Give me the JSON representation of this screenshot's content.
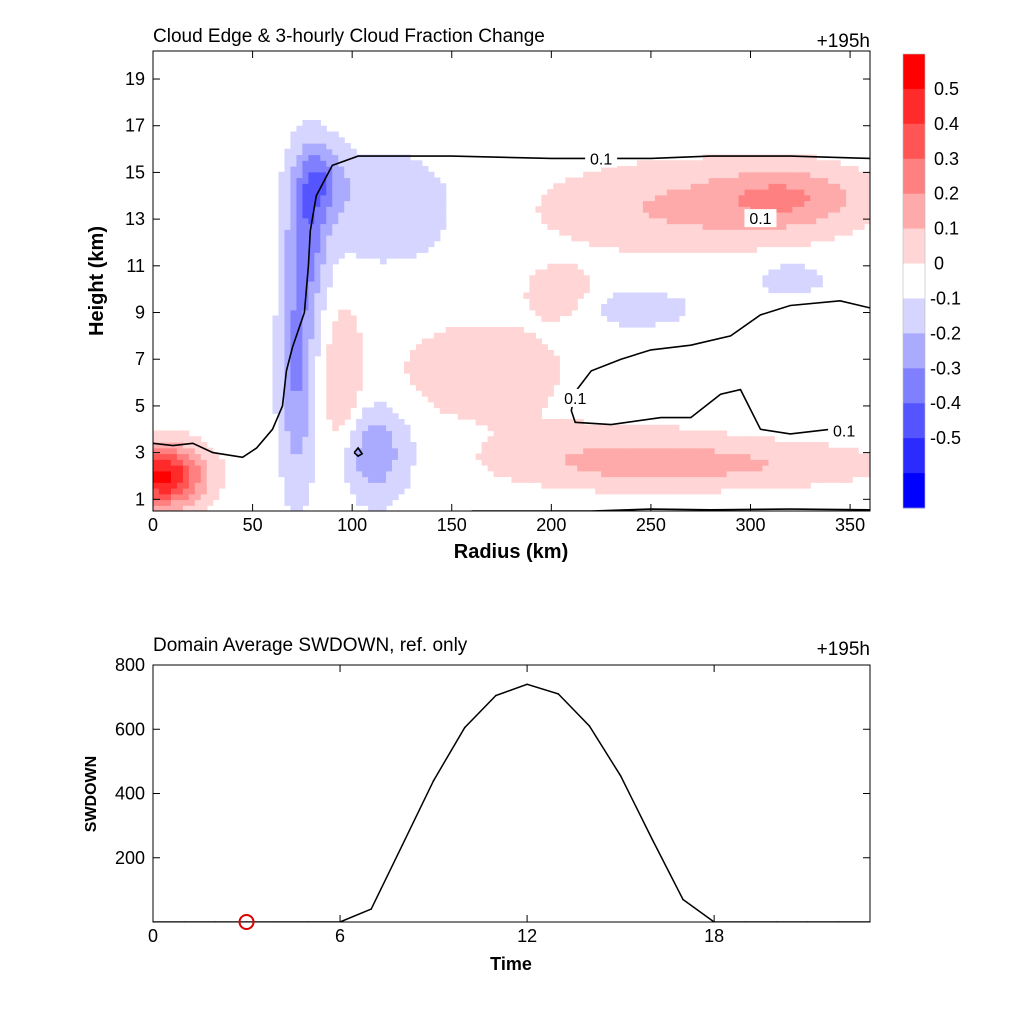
{
  "chart_data": [
    {
      "type": "heatmap",
      "title": "Cloud Edge & 3-hourly Cloud Fraction Change",
      "time_label": "+195h",
      "xlabel": "Radius (km)",
      "ylabel": "Height (km)",
      "xlim": [
        0,
        360
      ],
      "ylim": [
        0.5,
        20.2
      ],
      "x_ticks": [
        "0",
        "50",
        "100",
        "150",
        "200",
        "250",
        "300",
        "350"
      ],
      "y_ticks": [
        "1",
        "3",
        "5",
        "7",
        "9",
        "11",
        "13",
        "15",
        "17",
        "19"
      ],
      "colorbar": {
        "levels": [
          "0.5",
          "0.4",
          "0.3",
          "0.2",
          "0.1",
          "0",
          "-0.1",
          "-0.2",
          "-0.3",
          "-0.4",
          "-0.5"
        ],
        "range": [
          -0.55,
          0.55
        ],
        "colors": [
          "#ff0000",
          "#ff2b2b",
          "#ff5555",
          "#ff8080",
          "#ffaaaa",
          "#ffd5d5",
          "#ffffff",
          "#d5d5ff",
          "#aaaaff",
          "#8080ff",
          "#5555ff",
          "#2b2bff",
          "#0000ff"
        ]
      },
      "features": [
        {
          "x": 5,
          "y": 2.0,
          "value": 0.5,
          "sx": 14,
          "sy": 0.9
        },
        {
          "x": 72,
          "y": 6.5,
          "value": -0.22,
          "sx": 6,
          "sy": 3.5
        },
        {
          "x": 78,
          "y": 12.5,
          "value": -0.22,
          "sx": 7,
          "sy": 2.5
        },
        {
          "x": 85,
          "y": 14.8,
          "value": -0.18,
          "sx": 8,
          "sy": 1.0
        },
        {
          "x": 115,
          "y": 13.5,
          "value": -0.12,
          "sx": 25,
          "sy": 1.6
        },
        {
          "x": 110,
          "y": 3.0,
          "value": -0.2,
          "sx": 13,
          "sy": 1.4
        },
        {
          "x": 95,
          "y": 5.5,
          "value": 0.13,
          "sx": 7,
          "sy": 2.5
        },
        {
          "x": 165,
          "y": 6.5,
          "value": 0.1,
          "sx": 30,
          "sy": 1.5
        },
        {
          "x": 205,
          "y": 9.8,
          "value": 0.12,
          "sx": 12,
          "sy": 0.8
        },
        {
          "x": 270,
          "y": 13.5,
          "value": 0.14,
          "sx": 50,
          "sy": 1.3
        },
        {
          "x": 320,
          "y": 14.0,
          "value": 0.16,
          "sx": 25,
          "sy": 0.9
        },
        {
          "x": 280,
          "y": 2.5,
          "value": 0.13,
          "sx": 60,
          "sy": 0.7
        },
        {
          "x": 230,
          "y": 3.0,
          "value": 0.08,
          "sx": 40,
          "sy": 1.0
        },
        {
          "x": 240,
          "y": 9.2,
          "value": -0.08,
          "sx": 25,
          "sy": 0.7
        },
        {
          "x": 320,
          "y": 10.5,
          "value": -0.08,
          "sx": 15,
          "sy": 0.6
        }
      ],
      "contours": [
        {
          "label": "0.1",
          "points": [
            [
              0,
              3.4
            ],
            [
              10,
              3.3
            ],
            [
              20,
              3.4
            ],
            [
              30,
              3.0
            ],
            [
              45,
              2.8
            ],
            [
              52,
              3.2
            ],
            [
              60,
              4.0
            ],
            [
              65,
              5.0
            ],
            [
              67,
              6.5
            ],
            [
              70,
              7.5
            ],
            [
              76,
              9.0
            ],
            [
              78,
              11.0
            ],
            [
              79,
              12.5
            ],
            [
              82,
              14.0
            ],
            [
              90,
              15.3
            ],
            [
              103,
              15.7
            ],
            [
              150,
              15.7
            ],
            [
              200,
              15.6
            ],
            [
              250,
              15.6
            ],
            [
              280,
              15.7
            ],
            [
              320,
              15.7
            ],
            [
              360,
              15.6
            ]
          ],
          "label_positions": [
            [
              305,
              13
            ],
            [
              225,
              15.55
            ]
          ]
        },
        {
          "label": "0.1",
          "points": [
            [
              360,
              9.2
            ],
            [
              345,
              9.5
            ],
            [
              320,
              9.3
            ],
            [
              305,
              8.9
            ],
            [
              290,
              8.0
            ],
            [
              270,
              7.6
            ],
            [
              250,
              7.4
            ],
            [
              235,
              7.0
            ],
            [
              220,
              6.5
            ],
            [
              212,
              5.6
            ],
            [
              210,
              4.8
            ],
            [
              212,
              4.3
            ],
            [
              230,
              4.2
            ],
            [
              255,
              4.5
            ],
            [
              270,
              4.5
            ],
            [
              285,
              5.5
            ],
            [
              295,
              5.7
            ],
            [
              305,
              4.0
            ],
            [
              320,
              3.8
            ],
            [
              340,
              4.0
            ]
          ],
          "label_positions": [
            [
              212,
              5.3
            ],
            [
              347,
              3.9
            ]
          ]
        },
        {
          "label": "",
          "points": [
            [
              101,
              3.0
            ],
            [
              103,
              3.2
            ],
            [
              105,
              2.95
            ],
            [
              103,
              2.85
            ],
            [
              101,
              3.0
            ]
          ]
        },
        {
          "label": "",
          "points": [
            [
              160,
              0.5
            ],
            [
              220,
              0.5
            ],
            [
              250,
              0.58
            ],
            [
              280,
              0.55
            ],
            [
              320,
              0.58
            ],
            [
              360,
              0.55
            ]
          ]
        }
      ]
    },
    {
      "type": "line",
      "title": "Domain Average SWDOWN, ref. only",
      "time_label": "+195h",
      "xlabel": "Time",
      "ylabel": "SWDOWN",
      "xlim": [
        0,
        23
      ],
      "ylim": [
        0,
        800
      ],
      "x_ticks": [
        "0",
        "6",
        "12",
        "18"
      ],
      "y_ticks": [
        "200",
        "400",
        "600",
        "800"
      ],
      "x": [
        0,
        1,
        2,
        3,
        4,
        5,
        6,
        7,
        8,
        9,
        10,
        11,
        12,
        13,
        14,
        15,
        16,
        17,
        18,
        19,
        20,
        21,
        22,
        23
      ],
      "y": [
        0,
        0,
        0,
        0,
        0,
        0,
        0,
        40,
        240,
        440,
        605,
        705,
        740,
        710,
        610,
        455,
        260,
        70,
        0,
        0,
        0,
        0,
        0,
        0
      ],
      "marker": {
        "x": 3,
        "y": 0,
        "color": "#dd0000"
      }
    }
  ]
}
